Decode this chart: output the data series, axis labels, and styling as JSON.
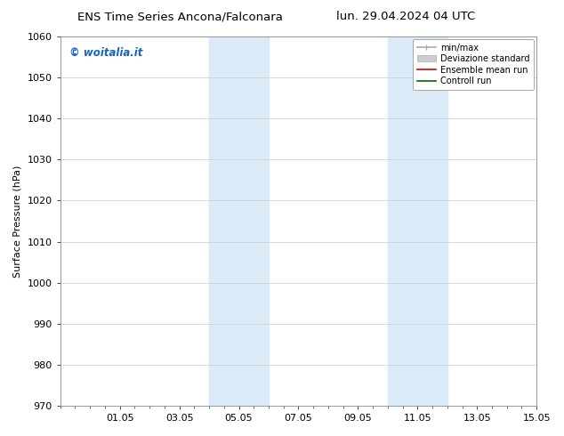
{
  "title_left": "ENS Time Series Ancona/Falconara",
  "title_right": "lun. 29.04.2024 04 UTC",
  "ylabel": "Surface Pressure (hPa)",
  "ylim": [
    970,
    1060
  ],
  "yticks": [
    970,
    980,
    990,
    1000,
    1010,
    1020,
    1030,
    1040,
    1050,
    1060
  ],
  "xtick_positions": [
    2,
    4,
    6,
    8,
    10,
    12,
    14,
    16
  ],
  "xtick_labels": [
    "01.05",
    "03.05",
    "05.05",
    "07.05",
    "09.05",
    "11.05",
    "13.05",
    "15.05"
  ],
  "xlim": [
    0,
    16
  ],
  "shaded_regions": [
    {
      "xstart": 5.0,
      "xend": 7.0
    },
    {
      "xstart": 11.0,
      "xend": 13.0
    }
  ],
  "shade_color": "#daeaf7",
  "watermark": "© woitalia.it",
  "watermark_color": "#1565C0",
  "legend_labels": [
    "min/max",
    "Deviazione standard",
    "Ensemble mean run",
    "Controll run"
  ],
  "background_color": "#ffffff",
  "grid_color": "#cccccc",
  "title_fontsize": 9.5,
  "axis_fontsize": 8,
  "tick_fontsize": 8
}
